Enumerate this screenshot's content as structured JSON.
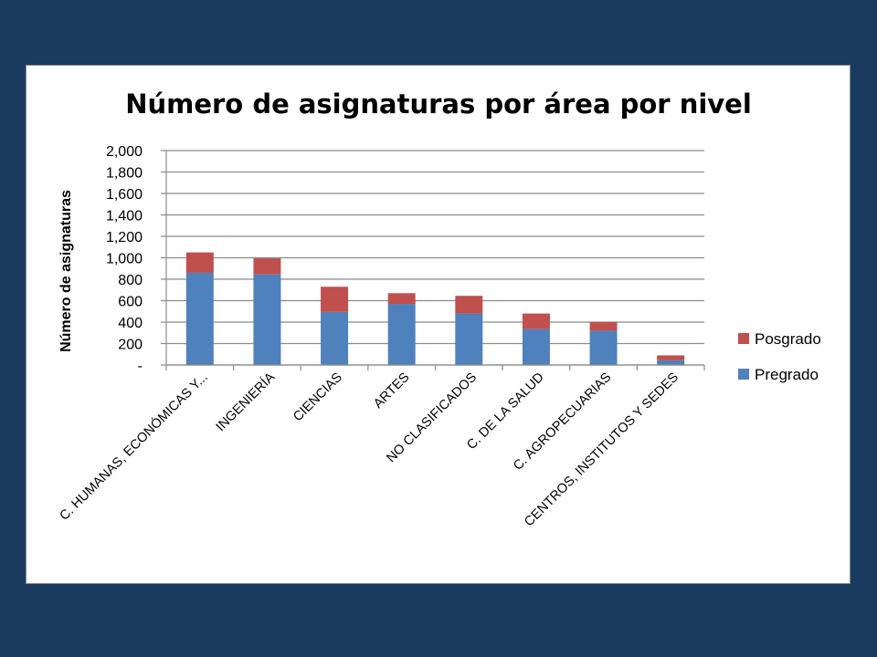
{
  "chart_data": {
    "type": "bar",
    "stacked": true,
    "title": "Número de asignaturas por área por nivel",
    "xlabel": "",
    "ylabel": "Número de asignaturas",
    "categories": [
      "C. HUMANAS, ECONÓMICAS Y...",
      "INGENIERÍA",
      "CIENCIAS",
      "ARTES",
      "NO CLASIFICADOS",
      "C. DE LA SALUD",
      "C. AGROPECUARIAS",
      "CENTROS, INSTITUTOS Y SEDES"
    ],
    "series": [
      {
        "name": "Pregrado",
        "color": "#4f81bd",
        "values": [
          860,
          845,
          495,
          570,
          480,
          335,
          320,
          45
        ]
      },
      {
        "name": "Posgrado",
        "color": "#c0504d",
        "values": [
          190,
          150,
          235,
          100,
          165,
          145,
          80,
          45
        ]
      }
    ],
    "ylim": [
      0,
      2000
    ],
    "yticks": [
      0,
      200,
      400,
      600,
      800,
      1000,
      1200,
      1400,
      1600,
      1800,
      2000
    ],
    "ytick_labels": [
      "-",
      "200",
      "400",
      "600",
      "800",
      "1,000",
      "1,200",
      "1,400",
      "1,600",
      "1,800",
      "2,000"
    ],
    "grid": true,
    "legend_position": "right"
  }
}
